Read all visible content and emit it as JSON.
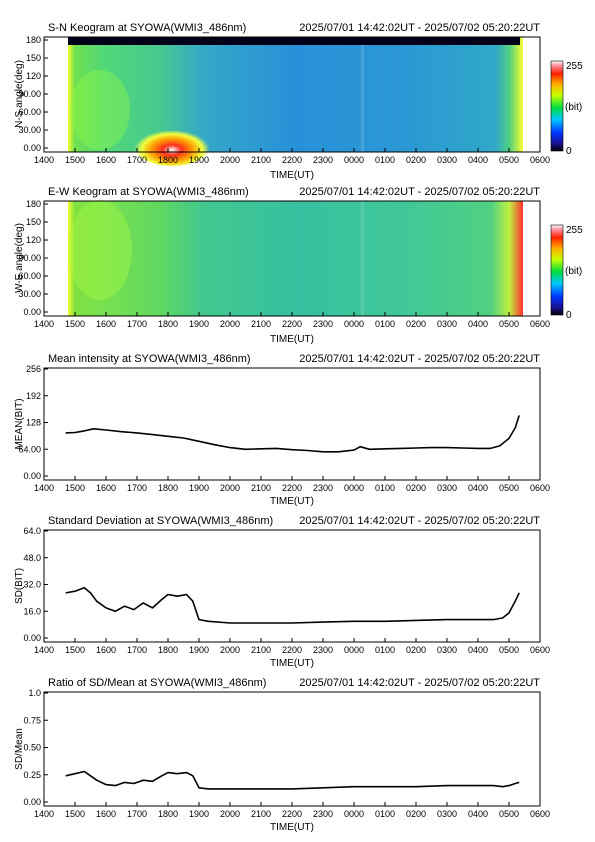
{
  "time_range": "2025/07/01 14:42:02UT - 2025/07/02 05:20:22UT",
  "x_ticks": [
    "1400",
    "1500",
    "1600",
    "1700",
    "1800",
    "1900",
    "2000",
    "2100",
    "2200",
    "2300",
    "0000",
    "0100",
    "0200",
    "0300",
    "0400",
    "0500",
    "0600"
  ],
  "x_label": "TIME(UT)",
  "colorbar": {
    "max_label": "255",
    "unit_label": "(bit)",
    "min_label": "0"
  },
  "keograms": [
    {
      "title": "S-N Keogram at SYOWA(WMI3_486nm)",
      "ylabel": "N-S angle(deg)",
      "yticks": [
        "0.00",
        "30.00",
        "60.00",
        "90.00",
        "120",
        "150",
        "180"
      ]
    },
    {
      "title": "E-W Keogram at SYOWA(WMI3_486nm)",
      "ylabel": "W-E angle(deg)",
      "yticks": [
        "0.00",
        "30.00",
        "60.00",
        "90.00",
        "120",
        "150",
        "180"
      ]
    }
  ],
  "chart_data": [
    {
      "type": "line",
      "title": "Mean intensity at SYOWA(WMI3_486nm)",
      "ylabel": "MEAN(BIT)",
      "xlabel": "TIME(UT)",
      "ylim": [
        0,
        256
      ],
      "yticks": [
        "0.00",
        "64.00",
        "128",
        "192",
        "256"
      ],
      "x": [
        14.7,
        15.0,
        15.3,
        15.6,
        16.0,
        16.5,
        17.0,
        17.5,
        18.0,
        18.5,
        19.0,
        19.5,
        20.0,
        20.5,
        21.0,
        21.5,
        22.0,
        22.5,
        23.0,
        23.5,
        24.0,
        24.2,
        24.5,
        25.0,
        25.5,
        26.0,
        26.5,
        27.0,
        27.5,
        28.0,
        28.4,
        28.7,
        29.0,
        29.2,
        29.33
      ],
      "series": [
        {
          "values": [
            103,
            104,
            108,
            113,
            110,
            106,
            103,
            99,
            95,
            91,
            83,
            75,
            68,
            64,
            65,
            66,
            63,
            61,
            58,
            58,
            62,
            70,
            64,
            65,
            66,
            67,
            68,
            68,
            67,
            66,
            66,
            72,
            90,
            115,
            145
          ]
        }
      ]
    },
    {
      "type": "line",
      "title": "Standard Deviation at SYOWA(WMI3_486nm)",
      "ylabel": "SD(BIT)",
      "xlabel": "TIME(UT)",
      "ylim": [
        0,
        64
      ],
      "yticks": [
        "0.00",
        "16.0",
        "32.0",
        "48.0",
        "64.0"
      ],
      "x": [
        14.7,
        15.0,
        15.3,
        15.5,
        15.7,
        16.0,
        16.3,
        16.6,
        16.9,
        17.2,
        17.5,
        17.8,
        18.0,
        18.3,
        18.6,
        18.8,
        19.0,
        19.3,
        20.0,
        21.0,
        22.0,
        23.0,
        24.0,
        25.0,
        26.0,
        27.0,
        28.0,
        28.5,
        28.8,
        29.0,
        29.2,
        29.33
      ],
      "series": [
        {
          "values": [
            27,
            28,
            30,
            27,
            22,
            18,
            16,
            19,
            17,
            21,
            18,
            23,
            26,
            25,
            26,
            22,
            11,
            10,
            9,
            9,
            9,
            9.5,
            10,
            10,
            10.5,
            11,
            11,
            11,
            12,
            15,
            22,
            27
          ]
        }
      ]
    },
    {
      "type": "line",
      "title": "Ratio of SD/Mean at SYOWA(WMI3_486nm)",
      "ylabel": "SD/Mean",
      "xlabel": "TIME(UT)",
      "ylim": [
        0,
        1.0
      ],
      "yticks": [
        "0.00",
        "0.25",
        "0.50",
        "0.75",
        "1.0"
      ],
      "x": [
        14.7,
        15.0,
        15.3,
        15.5,
        15.7,
        16.0,
        16.3,
        16.6,
        16.9,
        17.2,
        17.5,
        17.8,
        18.0,
        18.3,
        18.6,
        18.8,
        19.0,
        19.3,
        20.0,
        21.0,
        22.0,
        23.0,
        24.0,
        25.0,
        26.0,
        27.0,
        28.0,
        28.5,
        28.8,
        29.0,
        29.2,
        29.33
      ],
      "series": [
        {
          "values": [
            0.24,
            0.26,
            0.28,
            0.24,
            0.2,
            0.16,
            0.15,
            0.18,
            0.17,
            0.2,
            0.19,
            0.24,
            0.27,
            0.26,
            0.27,
            0.24,
            0.13,
            0.12,
            0.12,
            0.12,
            0.12,
            0.13,
            0.14,
            0.14,
            0.14,
            0.15,
            0.15,
            0.15,
            0.14,
            0.15,
            0.17,
            0.18
          ]
        }
      ]
    }
  ]
}
